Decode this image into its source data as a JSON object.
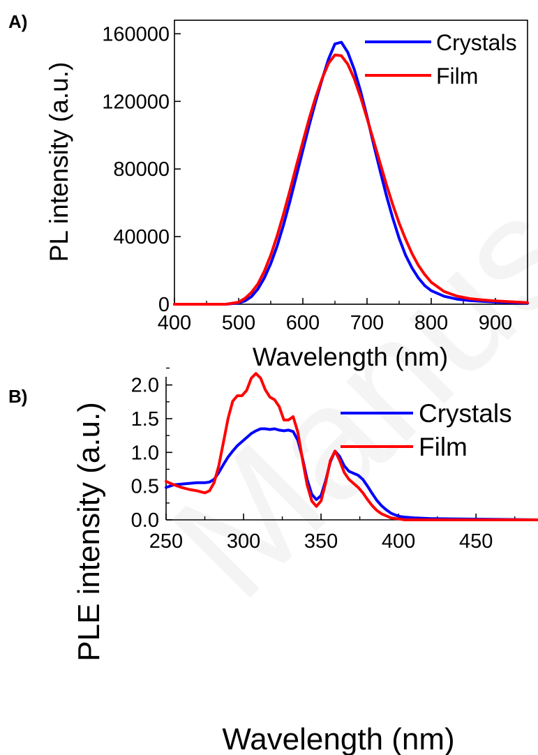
{
  "chart_data": [
    {
      "panel": "A)",
      "type": "line",
      "xlabel": "Wavelength (nm)",
      "ylabel": "PL intensity (a.u.)",
      "xlim": [
        400,
        950
      ],
      "ylim": [
        0,
        168000
      ],
      "xticks": [
        400,
        500,
        600,
        700,
        800,
        900
      ],
      "yticks": [
        0,
        40000,
        80000,
        120000,
        160000
      ],
      "legend_position": "top-right",
      "grid": false,
      "series": [
        {
          "name": "Crystals",
          "color": "#0000ff",
          "x": [
            400,
            450,
            480,
            500,
            510,
            520,
            530,
            540,
            550,
            560,
            570,
            580,
            590,
            600,
            610,
            620,
            630,
            640,
            650,
            660,
            670,
            680,
            690,
            700,
            710,
            720,
            730,
            740,
            750,
            760,
            770,
            780,
            790,
            800,
            820,
            840,
            860,
            880,
            900,
            950
          ],
          "y": [
            0,
            0,
            0,
            800,
            2000,
            4500,
            9000,
            15500,
            24000,
            34500,
            47000,
            61000,
            76000,
            91000,
            106000,
            120000,
            133000,
            145000,
            154000,
            155000,
            149000,
            139000,
            126000,
            111000,
            95000,
            79500,
            64500,
            51000,
            39000,
            29000,
            21500,
            15500,
            11000,
            8000,
            4700,
            3000,
            2200,
            1700,
            1300,
            600
          ]
        },
        {
          "name": "Film",
          "color": "#ff0000",
          "x": [
            400,
            450,
            480,
            500,
            510,
            520,
            530,
            540,
            550,
            560,
            570,
            580,
            590,
            600,
            610,
            620,
            630,
            640,
            650,
            660,
            670,
            680,
            690,
            700,
            710,
            720,
            730,
            740,
            750,
            760,
            770,
            780,
            790,
            800,
            820,
            840,
            860,
            880,
            900,
            950
          ],
          "y": [
            0,
            0,
            0,
            1200,
            3500,
            7000,
            12000,
            19500,
            29000,
            40500,
            53500,
            67500,
            82000,
            96000,
            110000,
            122500,
            133500,
            142500,
            147500,
            147000,
            142000,
            133500,
            122500,
            110000,
            97000,
            84000,
            71000,
            59000,
            48000,
            38500,
            30000,
            23000,
            17500,
            13000,
            7500,
            4800,
            3300,
            2500,
            2000,
            900
          ]
        }
      ]
    },
    {
      "panel": "B)",
      "type": "line",
      "xlabel": "Wavelength (nm)",
      "ylabel": "PLE intensity (a.u.)",
      "xlim": [
        250,
        490
      ],
      "ylim": [
        0,
        2.4
      ],
      "xticks": [
        250,
        300,
        350,
        400,
        450
      ],
      "yticks": [
        0.0,
        0.5,
        1.0,
        1.5,
        2.0
      ],
      "ytick_labels": [
        "0.0",
        "0.5",
        "1.0",
        "1.5",
        "2.0"
      ],
      "legend_position": "top-right",
      "grid": false,
      "series": [
        {
          "name": "Crystals",
          "color": "#0000ff",
          "x": [
            250,
            255,
            260,
            265,
            270,
            275,
            278,
            281,
            284,
            287,
            290,
            293,
            296,
            299,
            302,
            305,
            308,
            311,
            314,
            317,
            320,
            323,
            326,
            329,
            332,
            335,
            338,
            341,
            344,
            347,
            350,
            353,
            356,
            359,
            362,
            365,
            368,
            371,
            374,
            377,
            380,
            383,
            386,
            389,
            392,
            395,
            398,
            401,
            404,
            410,
            420,
            430,
            450,
            470,
            490
          ],
          "y": [
            0.48,
            0.52,
            0.53,
            0.54,
            0.55,
            0.55,
            0.56,
            0.6,
            0.7,
            0.82,
            0.93,
            1.02,
            1.1,
            1.16,
            1.22,
            1.28,
            1.32,
            1.35,
            1.35,
            1.34,
            1.35,
            1.33,
            1.32,
            1.33,
            1.31,
            1.18,
            0.92,
            0.6,
            0.38,
            0.3,
            0.36,
            0.58,
            0.86,
            1.02,
            0.94,
            0.8,
            0.72,
            0.69,
            0.66,
            0.6,
            0.5,
            0.39,
            0.29,
            0.21,
            0.15,
            0.1,
            0.07,
            0.05,
            0.04,
            0.03,
            0.02,
            0.015,
            0.01,
            0.005,
            0.0
          ]
        },
        {
          "name": "Film",
          "color": "#ff0000",
          "x": [
            250,
            255,
            260,
            265,
            270,
            275,
            278,
            281,
            284,
            287,
            290,
            293,
            296,
            299,
            302,
            305,
            308,
            311,
            314,
            317,
            320,
            323,
            326,
            329,
            332,
            335,
            338,
            341,
            344,
            347,
            350,
            353,
            356,
            359,
            362,
            365,
            368,
            371,
            374,
            377,
            380,
            383,
            386,
            389,
            392,
            395,
            398,
            401,
            404,
            410,
            420,
            430,
            450,
            470,
            490
          ],
          "y": [
            0.57,
            0.52,
            0.48,
            0.45,
            0.43,
            0.4,
            0.43,
            0.55,
            0.8,
            1.15,
            1.5,
            1.76,
            1.84,
            1.84,
            1.92,
            2.1,
            2.17,
            2.1,
            1.93,
            1.82,
            1.78,
            1.68,
            1.48,
            1.48,
            1.53,
            1.3,
            0.9,
            0.52,
            0.28,
            0.2,
            0.28,
            0.55,
            0.88,
            1.02,
            0.88,
            0.7,
            0.6,
            0.54,
            0.48,
            0.4,
            0.3,
            0.21,
            0.14,
            0.09,
            0.06,
            0.03,
            0.02,
            0.01,
            0.0,
            0.0,
            0.0,
            0.0,
            0.0,
            0.0,
            0.0
          ]
        }
      ]
    }
  ]
}
